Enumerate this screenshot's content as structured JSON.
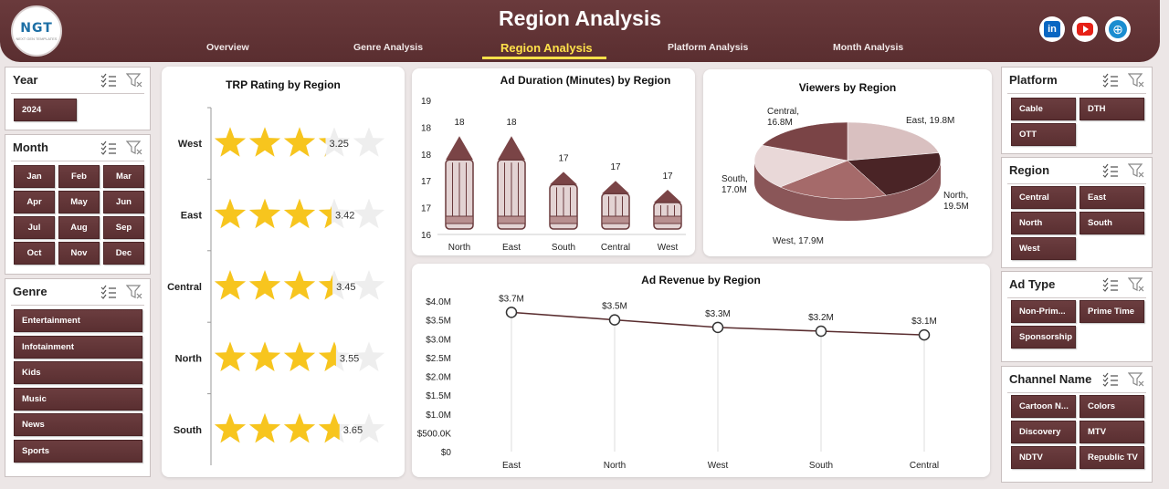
{
  "header": {
    "title": "Region Analysis",
    "logo_text": "NGT",
    "logo_sub": "NEXT GEN TEMPLATES",
    "nav": [
      "Overview",
      "Genre Analysis",
      "Region Analysis",
      "Platform Analysis",
      "Month Analysis"
    ],
    "active_nav": "Region Analysis",
    "social": [
      "linkedin-icon",
      "youtube-icon",
      "globe-icon"
    ],
    "brand_color": "#5e3133",
    "accent_color": "#ffe14a"
  },
  "slicers": {
    "year": {
      "title": "Year",
      "items": [
        "2024"
      ]
    },
    "month": {
      "title": "Month",
      "items": [
        "Jan",
        "Feb",
        "Mar",
        "Apr",
        "May",
        "Jun",
        "Jul",
        "Aug",
        "Sep",
        "Oct",
        "Nov",
        "Dec"
      ]
    },
    "genre": {
      "title": "Genre",
      "items": [
        "Entertainment",
        "Infotainment",
        "Kids",
        "Music",
        "News",
        "Sports"
      ]
    },
    "platform": {
      "title": "Platform",
      "items": [
        "Cable",
        "DTH",
        "OTT"
      ]
    },
    "region": {
      "title": "Region",
      "items": [
        "Central",
        "East",
        "North",
        "South",
        "West"
      ]
    },
    "adtype": {
      "title": "Ad Type",
      "items": [
        "Non-Prim...",
        "Prime Time",
        "Sponsorship"
      ]
    },
    "channel": {
      "title": "Channel Name",
      "items": [
        "Cartoon N...",
        "Colors",
        "Discovery",
        "MTV",
        "NDTV",
        "Republic TV"
      ]
    }
  },
  "chart_data": [
    {
      "type": "bar",
      "title": "TRP Rating by Region",
      "categories": [
        "West",
        "East",
        "Central",
        "North",
        "South"
      ],
      "values": [
        3.25,
        3.42,
        3.45,
        3.55,
        3.65
      ],
      "labels": [
        "3.25",
        "3.42",
        "3.45",
        "3.55",
        "3.65"
      ],
      "max": 5,
      "mark": "star",
      "color": "#f7c51e"
    },
    {
      "type": "bar",
      "title": "Ad Duration (Minutes) by Region",
      "categories": [
        "North",
        "East",
        "South",
        "Central",
        "West"
      ],
      "values": [
        18.2,
        18.2,
        17.4,
        17.2,
        17.0
      ],
      "labels": [
        "18",
        "18",
        "17",
        "17",
        "17"
      ],
      "ytick_labels": [
        "19",
        "18",
        "18",
        "17",
        "17",
        "16"
      ],
      "ylim": [
        16,
        19
      ],
      "mark": "pencil",
      "color": "#7a4446"
    },
    {
      "type": "pie",
      "title": "Viewers by Region",
      "categories": [
        "East",
        "North",
        "West",
        "South",
        "Central"
      ],
      "values": [
        19.8,
        19.5,
        17.9,
        17.0,
        16.8
      ],
      "labels": [
        "East, 19.8M",
        "North, 19.5M",
        "West, 17.9M",
        "South, 17.0M",
        "Central, 16.8M"
      ],
      "colors": [
        "#d9c0c0",
        "#4a2426",
        "#a56a6a",
        "#e9d8d8",
        "#7a4446"
      ]
    },
    {
      "type": "line",
      "title": "Ad Revenue by Region",
      "categories": [
        "East",
        "North",
        "West",
        "South",
        "Central"
      ],
      "values": [
        3.7,
        3.5,
        3.3,
        3.2,
        3.1
      ],
      "labels": [
        "$3.7M",
        "$3.5M",
        "$3.3M",
        "$3.2M",
        "$3.1M"
      ],
      "ytick_labels": [
        "$4.0M",
        "$3.5M",
        "$3.0M",
        "$2.5M",
        "$2.0M",
        "$1.5M",
        "$1.0M",
        "$500.0K",
        "$0"
      ],
      "ylim": [
        0,
        4
      ],
      "color": "#5a2e30"
    }
  ]
}
